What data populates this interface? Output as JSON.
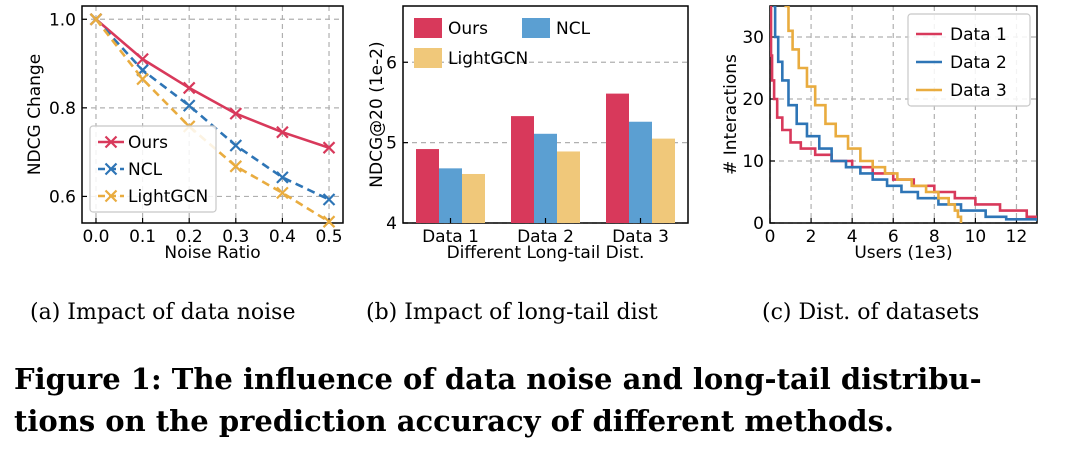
{
  "charts": [
    {
      "id": "a",
      "type": "line",
      "xlabel": "Noise Ratio",
      "ylabel": "NDCG Change",
      "xlim": [
        -0.03,
        0.53
      ],
      "ylim": [
        0.54,
        1.03
      ],
      "xticks": [
        "0.0",
        "0.1",
        "0.2",
        "0.3",
        "0.4",
        "0.5"
      ],
      "xtick_values": [
        0,
        0.1,
        0.2,
        0.3,
        0.4,
        0.5
      ],
      "yticks": [
        "0.6",
        "0.8",
        "1.0"
      ],
      "ytick_values": [
        0.6,
        0.8,
        1.0
      ],
      "grid": true,
      "legend": {
        "placement": "lower-left"
      },
      "x": [
        0,
        0.1,
        0.2,
        0.3,
        0.4,
        0.5
      ],
      "series": [
        {
          "name": "Ours",
          "color": "#d8395b",
          "dash": "solid",
          "marker": "x",
          "values": [
            1.0,
            0.91,
            0.845,
            0.787,
            0.745,
            0.71
          ]
        },
        {
          "name": "NCL",
          "color": "#2e75b6",
          "dash": "dashed",
          "marker": "x",
          "values": [
            1.0,
            0.885,
            0.805,
            0.715,
            0.643,
            0.593
          ]
        },
        {
          "name": "LightGCN",
          "color": "#e9ac3f",
          "dash": "dashed",
          "marker": "x",
          "values": [
            1.0,
            0.865,
            0.758,
            0.668,
            0.608,
            0.543
          ]
        }
      ]
    },
    {
      "id": "b",
      "type": "bar",
      "xlabel": "Different Long-tail Dist.",
      "ylabel": "NDCG@20 (1e-2)",
      "ylim": [
        4,
        6.7
      ],
      "yticks": [
        "4",
        "5",
        "6"
      ],
      "ytick_values": [
        4,
        5,
        6
      ],
      "grid": true,
      "legend": {
        "placement": "top"
      },
      "categories": [
        "Data 1",
        "Data 2",
        "Data 3"
      ],
      "series": [
        {
          "name": "Ours",
          "color": "#d8395b",
          "values": [
            4.92,
            5.33,
            5.61
          ]
        },
        {
          "name": "NCL",
          "color": "#5b9fd2",
          "values": [
            4.68,
            5.11,
            5.26
          ]
        },
        {
          "name": "LightGCN",
          "color": "#f0c87a",
          "values": [
            4.61,
            4.89,
            5.05
          ]
        }
      ]
    },
    {
      "id": "c",
      "type": "line",
      "xlabel": "Users (1e3)",
      "ylabel": "# Interactions",
      "xlim": [
        0,
        13
      ],
      "ylim": [
        0,
        35
      ],
      "xticks": [
        "0",
        "2",
        "4",
        "6",
        "8",
        "10",
        "12"
      ],
      "xtick_values": [
        0,
        2,
        4,
        6,
        8,
        10,
        12
      ],
      "yticks": [
        "0",
        "10",
        "20",
        "30"
      ],
      "ytick_values": [
        0,
        10,
        20,
        30
      ],
      "grid": true,
      "legend": {
        "placement": "top-right"
      },
      "series": [
        {
          "name": "Data 1",
          "color": "#d8395b",
          "points": [
            [
              0.02,
              35
            ],
            [
              0.05,
              27
            ],
            [
              0.1,
              23
            ],
            [
              0.2,
              20
            ],
            [
              0.35,
              17
            ],
            [
              0.6,
              15
            ],
            [
              1.0,
              13
            ],
            [
              1.5,
              12
            ],
            [
              2.2,
              11
            ],
            [
              3.0,
              10
            ],
            [
              4.0,
              9
            ],
            [
              5.0,
              8
            ],
            [
              6.0,
              7
            ],
            [
              7.0,
              6
            ],
            [
              8.0,
              5
            ],
            [
              9.0,
              4
            ],
            [
              10.0,
              3
            ],
            [
              11.2,
              2
            ],
            [
              12.5,
              1
            ],
            [
              13,
              1
            ]
          ]
        },
        {
          "name": "Data 2",
          "color": "#2e75b6",
          "points": [
            [
              0.15,
              35
            ],
            [
              0.25,
              30
            ],
            [
              0.4,
              26
            ],
            [
              0.6,
              23
            ],
            [
              0.9,
              19
            ],
            [
              1.3,
              16
            ],
            [
              1.8,
              14
            ],
            [
              2.4,
              12
            ],
            [
              3.0,
              10
            ],
            [
              3.7,
              9
            ],
            [
              4.4,
              8
            ],
            [
              5.0,
              7
            ],
            [
              5.7,
              6
            ],
            [
              6.4,
              5
            ],
            [
              7.2,
              4
            ],
            [
              8.2,
              3
            ],
            [
              9.3,
              2
            ],
            [
              10.5,
              1
            ],
            [
              11.5,
              0.6
            ],
            [
              13,
              0.3
            ]
          ]
        },
        {
          "name": "Data 3",
          "color": "#e9ac3f",
          "points": [
            [
              0.7,
              35
            ],
            [
              0.9,
              31
            ],
            [
              1.1,
              28
            ],
            [
              1.4,
              25
            ],
            [
              1.8,
              22
            ],
            [
              2.2,
              19
            ],
            [
              2.7,
              16
            ],
            [
              3.2,
              14
            ],
            [
              3.8,
              12
            ],
            [
              4.4,
              10
            ],
            [
              5.0,
              9
            ],
            [
              5.6,
              8
            ],
            [
              6.2,
              7
            ],
            [
              6.9,
              6
            ],
            [
              7.6,
              5
            ],
            [
              8.2,
              4
            ],
            [
              8.7,
              3
            ],
            [
              9.0,
              2
            ],
            [
              9.15,
              1
            ],
            [
              9.3,
              0
            ]
          ]
        }
      ]
    }
  ],
  "captions": {
    "a": "(a)  Impact of data noise",
    "b": "(b)  Impact of long-tail dist",
    "c": "(c)  Dist. of datasets"
  },
  "figure_caption": {
    "line1": "Figure 1: The influence of data noise and long-tail distribu-",
    "line2": "tions on the prediction accuracy of different methods."
  }
}
